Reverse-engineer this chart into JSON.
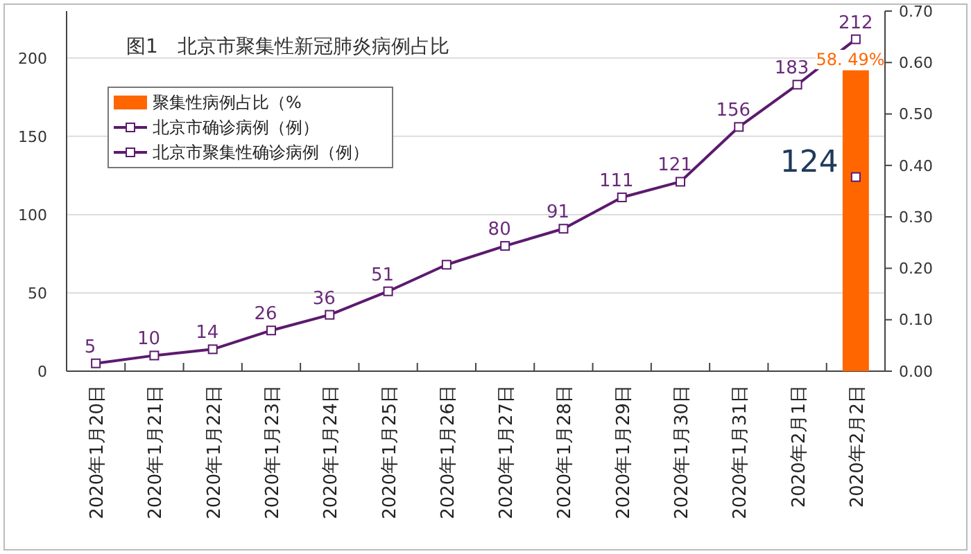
{
  "chart_data": {
    "type": "line",
    "title": "图1　北京市聚集性新冠肺炎病例占比",
    "categories": [
      "2020年1月20日",
      "2020年1月21日",
      "2020年1月22日",
      "2020年1月23日",
      "2020年1月24日",
      "2020年1月25日",
      "2020年1月26日",
      "2020年1月27日",
      "2020年1月28日",
      "2020年1月29日",
      "2020年1月30日",
      "2020年1月31日",
      "2020年2月1日",
      "2020年2月2日"
    ],
    "series": [
      {
        "name": "聚集性病例占比（%",
        "type": "bar",
        "axis": "y2",
        "color": "#ff6600",
        "values": [
          null,
          null,
          null,
          null,
          null,
          null,
          null,
          null,
          null,
          null,
          null,
          null,
          null,
          0.5849
        ]
      },
      {
        "name": "北京市确诊病例（例）",
        "color": "#5c1a6e",
        "values": [
          5,
          10,
          14,
          26,
          36,
          51,
          68,
          80,
          91,
          111,
          121,
          156,
          183,
          212
        ],
        "value_labels": [
          "5",
          "10",
          "14",
          "26",
          "36",
          "51",
          null,
          "80",
          "91",
          "111",
          "121",
          "156",
          "183",
          "212"
        ]
      },
      {
        "name": "北京市聚集性确诊病例（例）",
        "color": "#5c1a6e",
        "values": [
          null,
          null,
          null,
          null,
          null,
          null,
          null,
          null,
          null,
          null,
          null,
          null,
          null,
          124
        ],
        "value_labels": [
          null,
          null,
          null,
          null,
          null,
          null,
          null,
          null,
          null,
          null,
          null,
          null,
          null,
          "124"
        ]
      }
    ],
    "ylim": [
      0,
      230
    ],
    "yticks": [
      0,
      50,
      100,
      150,
      200
    ],
    "y2lim": [
      0,
      0.7
    ],
    "y2ticks": [
      {
        "value": 0,
        "label": "0.00"
      },
      {
        "value": 0.1,
        "label": "0.10"
      },
      {
        "value": 0.2,
        "label": "0.20"
      },
      {
        "value": 0.3,
        "label": "0.30"
      },
      {
        "value": 0.4,
        "label": "0.40"
      },
      {
        "value": 0.5,
        "label": "0.50"
      },
      {
        "value": 0.6,
        "label": "0.60"
      },
      {
        "value": 0.7,
        "label": "0.70"
      }
    ],
    "annotations": [
      "58. 49%"
    ],
    "grid": "y",
    "legend": "top left",
    "marker": "square",
    "line_style": "solid"
  }
}
